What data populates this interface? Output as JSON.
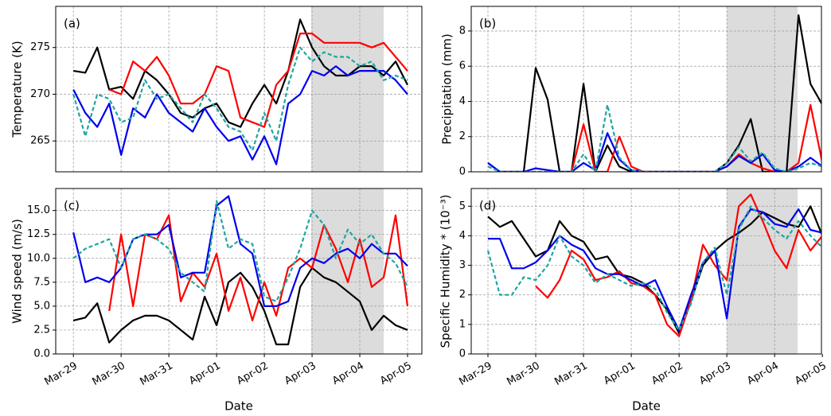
{
  "chart_data": [
    {
      "type": "line",
      "panel_label": "(a)",
      "ylabel": "Temperature (K)",
      "x": [
        0,
        0.25,
        0.5,
        0.75,
        1,
        1.25,
        1.5,
        1.75,
        2,
        2.25,
        2.5,
        2.75,
        3,
        3.25,
        3.5,
        3.75,
        4,
        4.25,
        4.5,
        4.75,
        5,
        5.25,
        5.5,
        5.75,
        6,
        6.25,
        6.5,
        6.75,
        7
      ],
      "xlim": [
        -0.37,
        7.3
      ],
      "xticks": [
        0,
        1,
        2,
        3,
        4,
        5,
        6,
        7
      ],
      "ylim": [
        261.7,
        279.4
      ],
      "yticks": [
        265,
        270,
        275
      ],
      "grid": true,
      "highlight_span": [
        4.98,
        6.5
      ],
      "series": [
        {
          "color": "#000000",
          "dashed": false,
          "values": [
            272.5,
            272.3,
            275,
            270.5,
            270.8,
            269.5,
            272.5,
            271.5,
            270,
            268,
            267.5,
            268.5,
            269,
            267,
            266.5,
            269,
            271,
            269,
            272.5,
            278,
            275,
            273,
            272,
            272,
            273,
            273,
            272,
            273.5,
            271
          ]
        },
        {
          "color": "#ff0000",
          "dashed": false,
          "values": [
            null,
            null,
            null,
            270.5,
            270,
            273.5,
            272.5,
            274,
            272,
            269,
            269,
            270,
            273,
            272.5,
            267.5,
            267,
            266.5,
            271,
            272.5,
            276.5,
            276.5,
            275.5,
            275.5,
            275.5,
            275.5,
            275,
            275.5,
            274,
            272.5
          ]
        },
        {
          "color": "#0000ee",
          "dashed": false,
          "values": [
            270.5,
            268,
            266.5,
            269,
            263.5,
            268.5,
            267.5,
            270,
            268,
            267,
            266,
            268.5,
            266.5,
            265,
            265.5,
            263,
            265.5,
            262.5,
            269,
            270,
            272.5,
            272,
            273,
            272,
            272.5,
            272.5,
            272.5,
            271.5,
            270
          ]
        },
        {
          "color": "#20a5a0",
          "dashed": true,
          "values": [
            270,
            265.5,
            270,
            269.5,
            267,
            267.5,
            271.5,
            269.5,
            270,
            268.5,
            267,
            270,
            268.5,
            266.5,
            266,
            264,
            268,
            265,
            271,
            275,
            273.5,
            274.5,
            274,
            274,
            273,
            273.5,
            271.5,
            272,
            271.5
          ]
        }
      ]
    },
    {
      "type": "line",
      "panel_label": "(b)",
      "ylabel": "Precipitation (mm)",
      "x": [
        0,
        0.25,
        0.5,
        0.75,
        1,
        1.25,
        1.5,
        1.75,
        2,
        2.25,
        2.5,
        2.75,
        3,
        3.25,
        3.5,
        3.75,
        4,
        4.25,
        4.5,
        4.75,
        5,
        5.25,
        5.5,
        5.75,
        6,
        6.25,
        6.5,
        6.75,
        7
      ],
      "xlim": [
        -0.35,
        6.98
      ],
      "xticks": [
        0,
        1,
        2,
        3,
        4,
        5,
        6,
        7
      ],
      "ylim": [
        0,
        9.4
      ],
      "yticks": [
        0,
        2,
        4,
        6,
        8
      ],
      "grid": true,
      "highlight_span": [
        5.0,
        6.48
      ],
      "series": [
        {
          "color": "#000000",
          "dashed": false,
          "values": [
            0.5,
            0,
            0,
            0,
            5.9,
            4.1,
            0,
            0,
            5,
            0,
            1.5,
            0.3,
            0,
            0,
            0,
            0,
            0,
            0,
            0,
            0,
            0.5,
            1.5,
            3,
            0,
            0,
            0,
            8.9,
            5,
            3.8
          ]
        },
        {
          "color": "#ff0000",
          "dashed": false,
          "values": [
            null,
            null,
            null,
            null,
            null,
            null,
            null,
            0,
            2.7,
            0,
            0,
            2,
            0.3,
            0,
            0,
            0,
            0,
            0,
            0,
            0,
            0.3,
            1,
            0.5,
            0.2,
            0,
            0,
            0.5,
            3.8,
            0.5
          ]
        },
        {
          "color": "#0000ee",
          "dashed": false,
          "values": [
            0.5,
            0,
            0,
            0,
            0.2,
            0.1,
            0,
            0,
            0.5,
            0.1,
            2.2,
            0.7,
            0.1,
            0,
            0,
            0,
            0,
            0,
            0,
            0,
            0.3,
            0.9,
            0.5,
            1,
            0.1,
            0,
            0.3,
            0.8,
            0.3
          ]
        },
        {
          "color": "#20a5a0",
          "dashed": true,
          "values": [
            0.3,
            0,
            0,
            0,
            0,
            0,
            0,
            0,
            1,
            0,
            3.8,
            0.8,
            0.1,
            0,
            0,
            0,
            0,
            0,
            0,
            0,
            0.5,
            1.4,
            0.6,
            1.1,
            0.2,
            0,
            0.2,
            0.5,
            0.3
          ]
        }
      ]
    },
    {
      "type": "line",
      "panel_label": "(c)",
      "ylabel": "Wind speed (m/s)",
      "xlabel": "Date",
      "x": [
        0,
        0.25,
        0.5,
        0.75,
        1,
        1.25,
        1.5,
        1.75,
        2,
        2.25,
        2.5,
        2.75,
        3,
        3.25,
        3.5,
        3.75,
        4,
        4.25,
        4.5,
        4.75,
        5,
        5.25,
        5.5,
        5.75,
        6,
        6.25,
        6.5,
        6.75,
        7
      ],
      "xlim": [
        -0.37,
        7.3
      ],
      "xticks": [
        {
          "value": 0,
          "label": "Mar-29"
        },
        {
          "value": 1,
          "label": "Mar-30"
        },
        {
          "value": 2,
          "label": "Mar-31"
        },
        {
          "value": 3,
          "label": "Apr-01"
        },
        {
          "value": 4,
          "label": "Apr-02"
        },
        {
          "value": 5,
          "label": "Apr-03"
        },
        {
          "value": 6,
          "label": "Apr-04"
        },
        {
          "value": 7,
          "label": "Apr-05"
        }
      ],
      "ylim": [
        0,
        17.3
      ],
      "yticks": [
        {
          "value": 0,
          "label": "0.0"
        },
        {
          "value": 2.5,
          "label": "2.5"
        },
        {
          "value": 5,
          "label": "5.0"
        },
        {
          "value": 7.5,
          "label": "7.5"
        },
        {
          "value": 10,
          "label": "10.0"
        },
        {
          "value": 12.5,
          "label": "12.5"
        },
        {
          "value": 15,
          "label": "15.0"
        }
      ],
      "grid": true,
      "highlight_span": [
        4.98,
        6.5
      ],
      "series": [
        {
          "color": "#000000",
          "dashed": false,
          "values": [
            3.5,
            3.8,
            5.3,
            1.2,
            2.5,
            3.5,
            4,
            4,
            3.5,
            2.5,
            1.5,
            6,
            3,
            7.5,
            8.5,
            7,
            4.5,
            1,
            1,
            7,
            9,
            8,
            7.5,
            6.5,
            5.5,
            2.5,
            4,
            3,
            2.5
          ]
        },
        {
          "color": "#ff0000",
          "dashed": false,
          "values": [
            null,
            null,
            null,
            4.5,
            12.5,
            5,
            12.5,
            12,
            14.5,
            5.5,
            8.5,
            7,
            10.5,
            4.5,
            8,
            3.5,
            7.5,
            4,
            9,
            10,
            9,
            13.5,
            11,
            7.5,
            12,
            7,
            8,
            14.5,
            5
          ]
        },
        {
          "color": "#0000ee",
          "dashed": false,
          "values": [
            12.7,
            7.5,
            8,
            7.5,
            9,
            12,
            12.5,
            12.5,
            13.5,
            8,
            8.5,
            8.5,
            15.5,
            16.5,
            11.5,
            10.5,
            5,
            5,
            5.5,
            9,
            10,
            9.5,
            10.5,
            11,
            10,
            11.5,
            10.5,
            10.5,
            9.2
          ]
        },
        {
          "color": "#20a5a0",
          "dashed": true,
          "values": [
            10,
            11,
            11.5,
            12,
            9,
            12,
            12.5,
            12,
            11,
            8.5,
            7.5,
            6.5,
            16,
            11,
            12,
            11.5,
            6,
            5.5,
            8,
            11,
            15,
            13.5,
            10,
            13,
            11.5,
            12.5,
            10.5,
            9.5,
            7
          ]
        }
      ]
    },
    {
      "type": "line",
      "panel_label": "(d)",
      "ylabel": "Specific Humidity * (10⁻³)",
      "xlabel": "Date",
      "x": [
        0,
        0.25,
        0.5,
        0.75,
        1,
        1.25,
        1.5,
        1.75,
        2,
        2.25,
        2.5,
        2.75,
        3,
        3.25,
        3.5,
        3.75,
        4,
        4.25,
        4.5,
        4.75,
        5,
        5.25,
        5.5,
        5.75,
        6,
        6.25,
        6.5,
        6.75,
        7
      ],
      "xlim": [
        -0.35,
        6.98
      ],
      "xticks": [
        {
          "value": 0,
          "label": "Mar-29"
        },
        {
          "value": 1,
          "label": "Mar-30"
        },
        {
          "value": 2,
          "label": "Mar-31"
        },
        {
          "value": 3,
          "label": "Apr-01"
        },
        {
          "value": 4,
          "label": "Apr-02"
        },
        {
          "value": 5,
          "label": "Apr-03"
        },
        {
          "value": 6,
          "label": "Apr-04"
        },
        {
          "value": 7,
          "label": "Apr-05"
        }
      ],
      "ylim": [
        0,
        5.6
      ],
      "yticks": [
        0,
        1,
        2,
        3,
        4,
        5
      ],
      "grid": true,
      "highlight_span": [
        5.0,
        6.48
      ],
      "series": [
        {
          "color": "#000000",
          "dashed": false,
          "values": [
            4.65,
            4.3,
            4.5,
            3.9,
            3.3,
            3.5,
            4.5,
            4,
            3.8,
            3.2,
            3.3,
            2.7,
            2.6,
            2.4,
            2,
            1.5,
            0.7,
            1.8,
            3,
            3.5,
            3.85,
            4.1,
            4.4,
            4.8,
            4.6,
            4.4,
            4.3,
            5,
            4
          ]
        },
        {
          "color": "#ff0000",
          "dashed": false,
          "values": [
            null,
            null,
            null,
            null,
            2.3,
            1.9,
            2.5,
            3.5,
            3.2,
            2.5,
            2.6,
            2.8,
            2.4,
            2.3,
            2,
            1,
            0.6,
            1.8,
            3.7,
            3,
            2.5,
            5,
            5.4,
            4.5,
            3.5,
            2.9,
            4.2,
            3.5,
            4
          ]
        },
        {
          "color": "#0000ee",
          "dashed": false,
          "values": [
            3.9,
            3.9,
            2.9,
            2.9,
            3.1,
            3.5,
            4,
            3.7,
            3.5,
            2.9,
            2.7,
            2.7,
            2.5,
            2.3,
            2.5,
            1.6,
            0.8,
            2,
            3.1,
            3.5,
            1.2,
            4.3,
            4.9,
            4.8,
            4.4,
            4.3,
            4.9,
            4.2,
            4.1
          ]
        },
        {
          "color": "#20a5a0",
          "dashed": true,
          "values": [
            3.5,
            2,
            2,
            2.6,
            2.5,
            3,
            4,
            3.3,
            3,
            2.4,
            2.7,
            2.5,
            2.3,
            2.4,
            2.2,
            1.4,
            0.8,
            1.7,
            3.1,
            3.6,
            2,
            4.2,
            5,
            4.6,
            4.2,
            3.9,
            4.5,
            4,
            3.6
          ]
        }
      ]
    }
  ]
}
